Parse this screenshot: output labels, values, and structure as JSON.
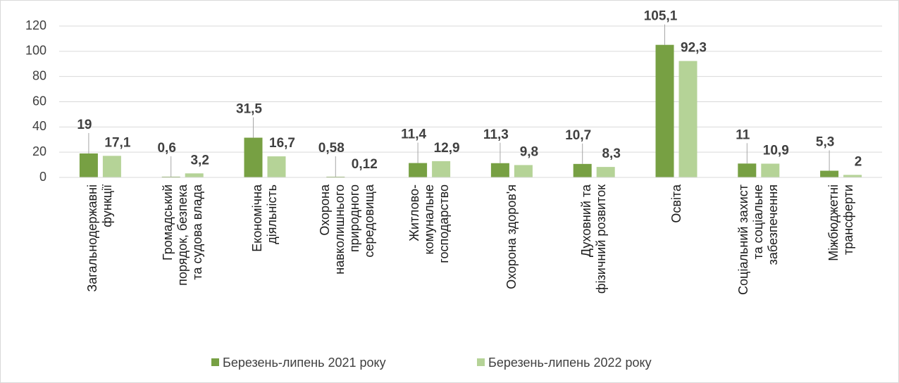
{
  "chart_data": {
    "type": "bar",
    "categories": [
      "Загальнодержавні\nфункції",
      "Громадський\nпорядок, безпека\nта судова влада",
      "Економічна\nдіяльність",
      "Охорона\nнавколишнього\nприродного\nсередовища",
      "Житлово-\nкомунальне\nгосподарство",
      "Охорона здоров'я",
      "Духовний та\nфізичний розвиток",
      "Освіта",
      "Соціальний захист\nта соціальне\nзабезпечення",
      "Міжбюджетні\nтрансферти"
    ],
    "series": [
      {
        "name": "Березень-липень 2021 року",
        "color": "#77a043",
        "values": [
          19,
          0.6,
          31.5,
          0.58,
          11.4,
          11.3,
          10.7,
          105.1,
          11,
          5.3
        ],
        "value_labels": [
          "19",
          "0,6",
          "31,5",
          "0,58",
          "11,4",
          "11,3",
          "10,7",
          "105,1",
          "11",
          "5,3"
        ]
      },
      {
        "name": "Березень-липень 2022 року",
        "color": "#b5d397",
        "values": [
          17.1,
          3.2,
          16.7,
          0.12,
          12.9,
          9.8,
          8.3,
          92.3,
          10.9,
          2
        ],
        "value_labels": [
          "17,1",
          "3,2",
          "16,7",
          "0,12",
          "12,9",
          "9,8",
          "8,3",
          "92,3",
          "10,9",
          "2"
        ]
      }
    ],
    "ylim": [
      0,
      120
    ],
    "yticks": [
      0,
      20,
      40,
      60,
      80,
      100,
      120
    ],
    "grid": true,
    "legend": "bottom"
  }
}
